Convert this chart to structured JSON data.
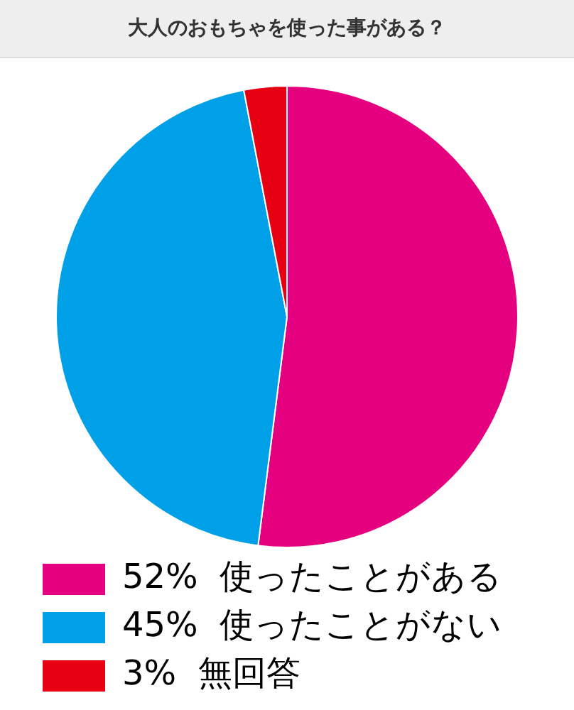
{
  "chart_data": {
    "type": "pie",
    "title": "大人のおもちゃを使った事がある？",
    "categories": [
      "使ったことがある",
      "使ったことがない",
      "無回答"
    ],
    "values": [
      52,
      45,
      3
    ],
    "value_labels": [
      "52%",
      "45%",
      "3%"
    ],
    "colors": [
      "#e4007f",
      "#00a0e9",
      "#e60012"
    ],
    "legend": "bottom"
  }
}
